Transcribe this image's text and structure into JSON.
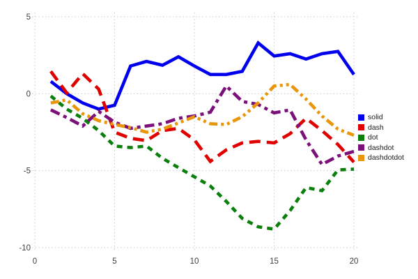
{
  "chart_data": {
    "type": "line",
    "title": "",
    "xlabel": "",
    "ylabel": "",
    "xlim": [
      0,
      20
    ],
    "ylim": [
      -10,
      5
    ],
    "xticks": [
      0,
      5,
      10,
      15,
      20
    ],
    "yticks": [
      5,
      0,
      -5,
      -10
    ],
    "grid": "dotted",
    "grid_color": "#ccccd6",
    "tick_color": "#3d3d3d",
    "legend_position": "right-outside",
    "x": [
      1,
      2,
      3,
      4,
      5,
      6,
      7,
      8,
      9,
      10,
      11,
      12,
      13,
      14,
      15,
      16,
      17,
      18,
      19,
      20
    ],
    "series": [
      {
        "name": "solid",
        "color": "#0000ee",
        "dash": "solid",
        "values": [
          0.8,
          0.0,
          -0.6,
          -1.0,
          -0.75,
          1.8,
          2.1,
          1.85,
          2.4,
          1.8,
          1.25,
          1.25,
          1.45,
          3.3,
          2.45,
          2.6,
          2.25,
          2.6,
          2.75,
          1.25
        ]
      },
      {
        "name": "dash",
        "color": "#e00000",
        "dash": "dash",
        "values": [
          1.45,
          0.05,
          1.3,
          0.3,
          -2.5,
          -2.9,
          -3.05,
          -2.4,
          -2.25,
          -3.0,
          -4.4,
          -3.65,
          -3.2,
          -3.1,
          -3.2,
          -2.6,
          -1.6,
          -2.4,
          -3.3,
          -4.45
        ]
      },
      {
        "name": "dot",
        "color": "#0b7f0b",
        "dash": "dot",
        "values": [
          -0.15,
          -1.0,
          -1.6,
          -2.4,
          -3.4,
          -3.5,
          -3.4,
          -4.2,
          -4.8,
          -5.4,
          -6.0,
          -7.0,
          -8.1,
          -8.65,
          -8.8,
          -7.6,
          -6.1,
          -6.3,
          -4.95,
          -4.9
        ]
      },
      {
        "name": "dashdot",
        "color": "#7b107b",
        "dash": "dashdot",
        "values": [
          -1.05,
          -1.55,
          -2.1,
          -1.15,
          -1.85,
          -2.25,
          -2.1,
          -1.95,
          -1.6,
          -1.45,
          -1.2,
          0.5,
          -0.5,
          -0.7,
          -1.25,
          -1.05,
          -3.0,
          -4.6,
          -4.05,
          -3.75
        ]
      },
      {
        "name": "dashdotdot",
        "color": "#e8960c",
        "dash": "dashdotdot",
        "values": [
          -0.6,
          -0.4,
          -1.3,
          -1.75,
          -2.0,
          -2.2,
          -2.5,
          -2.3,
          -1.9,
          -1.5,
          -1.95,
          -2.0,
          -1.5,
          -0.6,
          0.5,
          0.6,
          -0.35,
          -1.45,
          -2.3,
          -2.7
        ]
      }
    ],
    "legend_labels": [
      "solid",
      "dash",
      "dot",
      "dashdot",
      "dashdotdot"
    ]
  }
}
